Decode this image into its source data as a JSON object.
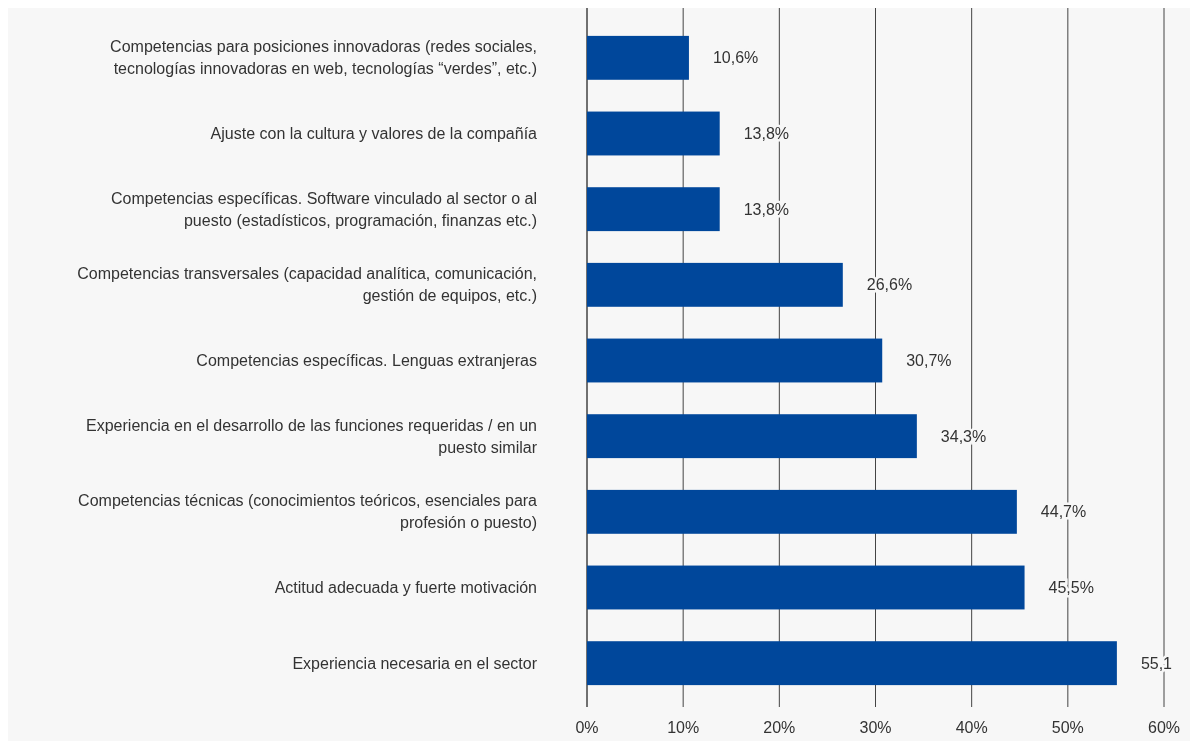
{
  "chart_data": {
    "type": "bar",
    "orientation": "horizontal",
    "categories": [
      "Competencias para posiciones innovadoras (redes sociales, tecnologías innovadoras en web, tecnologías “verdes”, etc.)",
      "Ajuste con la cultura y valores de la compañía",
      "Competencias específicas. Software vinculado al sector o al puesto (estadísticos, programación, finanzas etc.)",
      "Competencias transversales (capacidad analítica, comunicación, gestión de equipos, etc.)",
      "Competencias específicas. Lenguas extranjeras",
      "Experiencia en el desarrollo de las funciones requeridas / en un puesto similar",
      "Competencias técnicas (conocimientos teóricos, esenciales para profesión o puesto)",
      "Actitud adecuada y fuerte motivación",
      "Experiencia necesaria en el sector"
    ],
    "values": [
      10.6,
      13.8,
      13.8,
      26.6,
      30.7,
      34.3,
      44.7,
      45.5,
      55.1
    ],
    "value_labels": [
      "10,6%",
      "13,8%",
      "13,8%",
      "26,6%",
      "30,7%",
      "34,3%",
      "44,7%",
      "45,5%",
      "55,1"
    ],
    "color": "#00479b",
    "xlim": [
      0,
      60
    ],
    "xticks": [
      {
        "value": 0,
        "label": "0%"
      },
      {
        "value": 10,
        "label": "10%"
      },
      {
        "value": 20,
        "label": "20%"
      },
      {
        "value": 30,
        "label": "30%"
      },
      {
        "value": 40,
        "label": "40%"
      },
      {
        "value": 50,
        "label": "50%"
      },
      {
        "value": 60,
        "label": "60%"
      }
    ],
    "grid": "x"
  }
}
